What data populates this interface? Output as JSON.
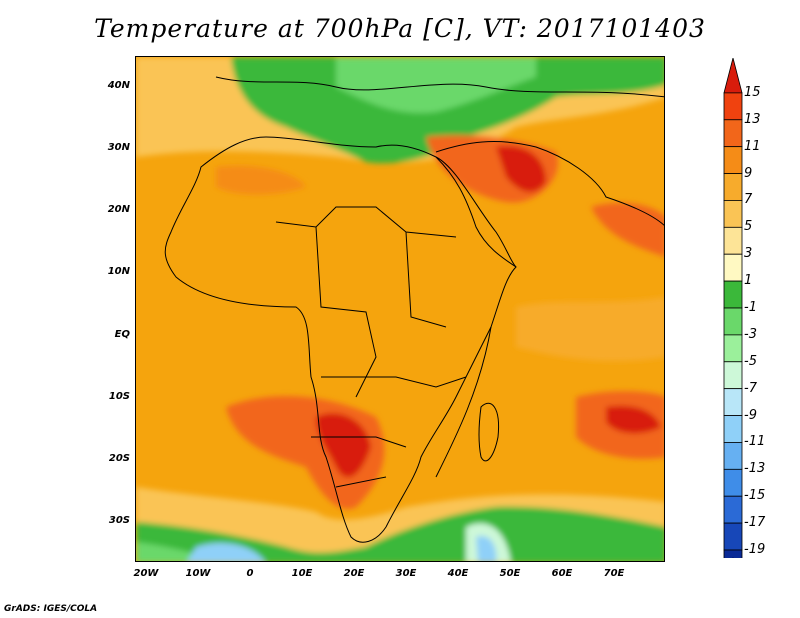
{
  "title": "Temperature at 700hPa [C], VT: 2017101403",
  "credit": "GrADS: IGES/COLA",
  "lat_ticks": [
    "40N",
    "30N",
    "20N",
    "10N",
    "EQ",
    "10S",
    "20S",
    "30S"
  ],
  "lon_ticks": [
    "20W",
    "10W",
    "0",
    "10E",
    "20E",
    "30E",
    "40E",
    "50E",
    "60E",
    "70E"
  ],
  "colorbar": {
    "labels": [
      "15",
      "13",
      "11",
      "9",
      "7",
      "5",
      "3",
      "1",
      "-1",
      "-3",
      "-5",
      "-7",
      "-9",
      "-11",
      "-13",
      "-15",
      "-17",
      "-19"
    ],
    "colors": [
      "#d81c0c",
      "#f0420f",
      "#f2661a",
      "#f58c17",
      "#f7ab2c",
      "#fac455",
      "#fde497",
      "#fff9c2",
      "#3bb83a",
      "#6ad86a",
      "#9bf09b",
      "#cdf8d8",
      "#b8e6f8",
      "#8fd0f8",
      "#66b0f2",
      "#3f8de8",
      "#2b6ad6",
      "#1747b8",
      "#0a2a96",
      "#081070"
    ]
  },
  "map": {
    "variable": "Temperature",
    "level": "700hPa",
    "units": "C",
    "valid_time": "2017101403",
    "region": "Africa, Arabian Peninsula and western Indian Ocean",
    "lon_range": [
      "20W",
      "78E"
    ],
    "lat_range": [
      "36S",
      "44N"
    ]
  }
}
